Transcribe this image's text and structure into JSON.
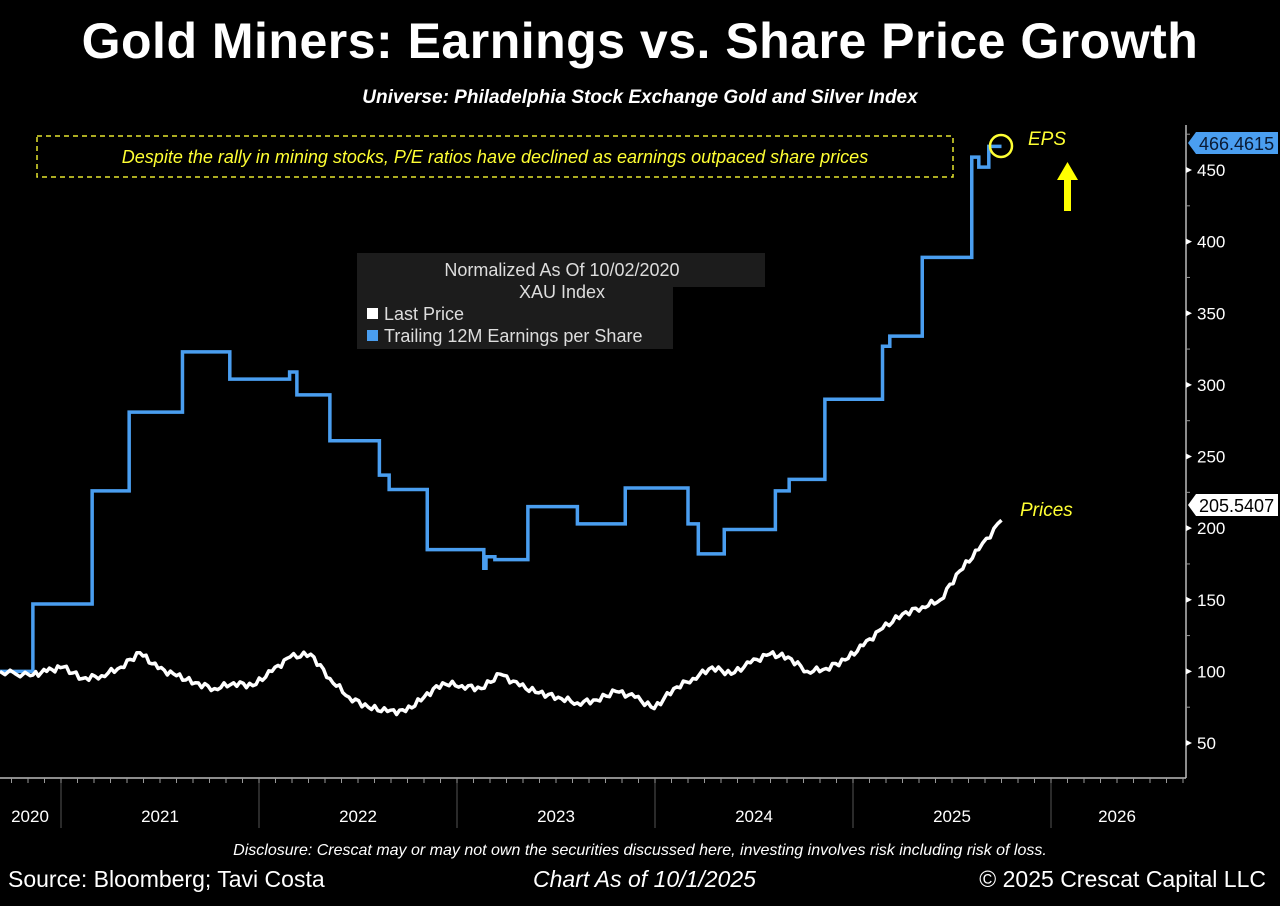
{
  "chart_data": {
    "type": "line",
    "title": "Gold Miners: Earnings vs. Share Price Growth",
    "subtitle": "Universe: Philadelphia Stock Exchange Gold and Silver Index",
    "legend": {
      "placement": "center-top",
      "title_line1": "Normalized As Of 10/02/2020",
      "title_line2": "XAU Index",
      "entries": [
        "Last Price",
        "Trailing 12M Earnings per Share"
      ]
    },
    "annotation_box": "Despite the rally in mining stocks, P/E ratios have declined as earnings outpaced share prices",
    "annotation_eps": "EPS",
    "annotation_prices": "Prices",
    "y_axis": {
      "side": "right",
      "ylim": [
        30,
        485
      ],
      "ticks": [
        50,
        100,
        150,
        200,
        250,
        300,
        350,
        400,
        450
      ]
    },
    "x_axis": {
      "ticks": [
        "2020",
        "2021",
        "2022",
        "2023",
        "2024",
        "2025",
        "2026"
      ],
      "range": [
        "2020-09",
        "2026-08"
      ]
    },
    "grid": false,
    "series": [
      {
        "name": "Last Price",
        "color": "#ffffff",
        "last_value_label": "205.5407",
        "points": [
          [
            "2020-10-02",
            100
          ],
          [
            "2020-11-05",
            97
          ],
          [
            "2020-12-05",
            100
          ],
          [
            "2021-01-05",
            103
          ],
          [
            "2021-02-10",
            95
          ],
          [
            "2021-03-15",
            97
          ],
          [
            "2021-04-20",
            103
          ],
          [
            "2021-05-25",
            113
          ],
          [
            "2021-06-28",
            102
          ],
          [
            "2021-08-01",
            97
          ],
          [
            "2021-09-05",
            92
          ],
          [
            "2021-10-10",
            88
          ],
          [
            "2021-11-15",
            92
          ],
          [
            "2021-12-20",
            90
          ],
          [
            "2022-01-25",
            100
          ],
          [
            "2022-02-28",
            110
          ],
          [
            "2022-04-05",
            112
          ],
          [
            "2022-05-10",
            95
          ],
          [
            "2022-06-15",
            82
          ],
          [
            "2022-07-20",
            75
          ],
          [
            "2022-08-25",
            72
          ],
          [
            "2022-09-28",
            72
          ],
          [
            "2022-11-01",
            82
          ],
          [
            "2022-12-05",
            92
          ],
          [
            "2023-01-10",
            90
          ],
          [
            "2023-02-15",
            88
          ],
          [
            "2023-03-20",
            98
          ],
          [
            "2023-04-25",
            90
          ],
          [
            "2023-05-30",
            85
          ],
          [
            "2023-07-05",
            82
          ],
          [
            "2023-08-10",
            78
          ],
          [
            "2023-09-15",
            80
          ],
          [
            "2023-10-20",
            86
          ],
          [
            "2023-11-25",
            82
          ],
          [
            "2023-12-30",
            74
          ],
          [
            "2024-02-05",
            88
          ],
          [
            "2024-03-10",
            95
          ],
          [
            "2024-04-15",
            103
          ],
          [
            "2024-05-20",
            98
          ],
          [
            "2024-06-25",
            106
          ],
          [
            "2024-07-30",
            112
          ],
          [
            "2024-09-03",
            110
          ],
          [
            "2024-10-08",
            100
          ],
          [
            "2024-11-12",
            102
          ],
          [
            "2024-12-17",
            108
          ],
          [
            "2025-01-20",
            118
          ],
          [
            "2025-02-25",
            130
          ],
          [
            "2025-04-01",
            140
          ],
          [
            "2025-05-07",
            145
          ],
          [
            "2025-06-10",
            150
          ],
          [
            "2025-07-15",
            170
          ],
          [
            "2025-08-20",
            185
          ],
          [
            "2025-10-01",
            205.5407
          ]
        ]
      },
      {
        "name": "Trailing 12M Earnings per Share",
        "color": "#4a9ef0",
        "last_value_label": "466.4615",
        "step": true,
        "points": [
          [
            "2020-10-02",
            100
          ],
          [
            "2020-11-10",
            147
          ],
          [
            "2021-02-28",
            226
          ],
          [
            "2021-05-05",
            281
          ],
          [
            "2021-08-12",
            323
          ],
          [
            "2021-11-08",
            304
          ],
          [
            "2022-02-27",
            309
          ],
          [
            "2022-03-10",
            293
          ],
          [
            "2022-05-10",
            261
          ],
          [
            "2022-08-10",
            237
          ],
          [
            "2022-08-28",
            227
          ],
          [
            "2022-11-07",
            185
          ],
          [
            "2023-02-20",
            172
          ],
          [
            "2023-02-24",
            180
          ],
          [
            "2023-03-10",
            178
          ],
          [
            "2023-05-10",
            215
          ],
          [
            "2023-08-10",
            203
          ],
          [
            "2023-11-07",
            228
          ],
          [
            "2024-03-01",
            203
          ],
          [
            "2024-03-20",
            182
          ],
          [
            "2024-05-07",
            199
          ],
          [
            "2024-08-10",
            226
          ],
          [
            "2024-09-05",
            234
          ],
          [
            "2024-11-10",
            290
          ],
          [
            "2025-02-25",
            327
          ],
          [
            "2025-03-08",
            334
          ],
          [
            "2025-05-07",
            389
          ],
          [
            "2025-08-07",
            459
          ],
          [
            "2025-08-20",
            452
          ],
          [
            "2025-09-08",
            466.4615
          ],
          [
            "2025-10-01",
            466.4615
          ]
        ]
      }
    ]
  },
  "footer": {
    "disclosure": "Disclosure: Crescat may or may not own the securities discussed here, investing involves risk including risk of loss.",
    "source": "Source: Bloomberg; Tavi Costa",
    "as_of": "Chart As of 10/1/2025",
    "copyright": "© 2025 Crescat Capital LLC"
  },
  "colors": {
    "background": "#000000",
    "annotation": "#ffff33",
    "eps": "#4a9ef0",
    "price": "#ffffff",
    "legend_bg": "#1c1c1c"
  }
}
